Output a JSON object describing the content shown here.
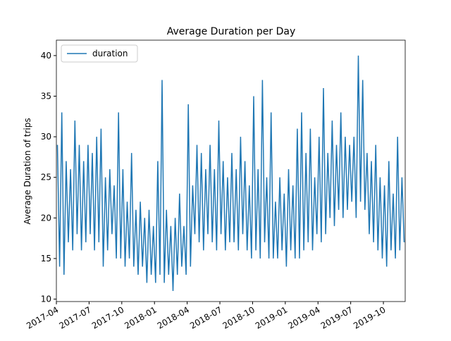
{
  "chart_data": {
    "type": "line",
    "title": "Average Duration per Day",
    "ylabel": "Average Duration of trips",
    "xlim": [
      "2017-04",
      "2019-12"
    ],
    "xticks": [
      "2017-04",
      "2017-07",
      "2017-10",
      "2018-01",
      "2018-04",
      "2018-07",
      "2018-10",
      "2019-01",
      "2019-04",
      "2019-07",
      "2019-10"
    ],
    "ylim": [
      9.7,
      41.9
    ],
    "yticks": [
      10,
      15,
      20,
      25,
      30,
      35,
      40
    ],
    "legend": "upper left",
    "series": [
      {
        "name": "duration",
        "color": "#1f77b4",
        "values": [
          29,
          14,
          33,
          13,
          27,
          17,
          26,
          16,
          32,
          18,
          29,
          16,
          27,
          17,
          29,
          18,
          28,
          16,
          30,
          17,
          31,
          14,
          25,
          16,
          26,
          18,
          24,
          15,
          33,
          15,
          26,
          14,
          22,
          15,
          28,
          14,
          21,
          13,
          22,
          14,
          20,
          12,
          21,
          13,
          19,
          12,
          27,
          13,
          37,
          12,
          21,
          13,
          19,
          11,
          20,
          13,
          23,
          14,
          19,
          13,
          34,
          14,
          24,
          18,
          29,
          17,
          28,
          16,
          26,
          18,
          29,
          17,
          26,
          16,
          32,
          18,
          27,
          16,
          25,
          17,
          28,
          17,
          26,
          16,
          30,
          18,
          27,
          16,
          24,
          15,
          35,
          16,
          26,
          15,
          37,
          17,
          25,
          15,
          33,
          15,
          22,
          15,
          25,
          16,
          23,
          14,
          26,
          16,
          24,
          15,
          31,
          15,
          33,
          16,
          28,
          17,
          31,
          16,
          25,
          18,
          30,
          17,
          36,
          18,
          28,
          20,
          32,
          19,
          29,
          21,
          33,
          20,
          30,
          21,
          29,
          22,
          30,
          20,
          40,
          22,
          37,
          21,
          28,
          18,
          27,
          17,
          29,
          16,
          25,
          15,
          24,
          14,
          27,
          16,
          23,
          15,
          30,
          16,
          25,
          17
        ]
      }
    ]
  }
}
